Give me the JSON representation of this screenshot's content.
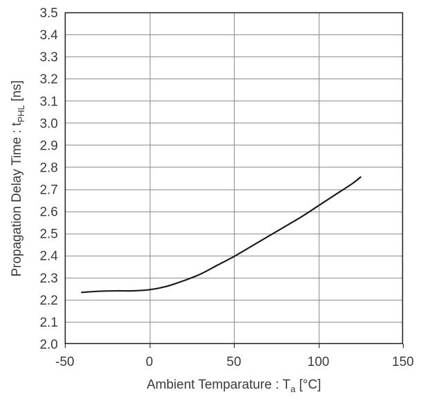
{
  "chart_data": {
    "type": "line",
    "title": "",
    "xlabel": {
      "main": "Ambient Temparature : T",
      "sub": "a",
      "unit": " [°C]"
    },
    "ylabel": {
      "main": "Propagation Delay Time  : t",
      "sub": "PHL",
      "unit": " [ns]"
    },
    "xlim": [
      -50,
      150
    ],
    "ylim": [
      2.0,
      3.5
    ],
    "xticks": [
      -50,
      0,
      50,
      100,
      150
    ],
    "xtick_labels": [
      "-50",
      "0",
      "50",
      "100",
      "150"
    ],
    "yticks": [
      2.0,
      2.1,
      2.2,
      2.3,
      2.4,
      2.5,
      2.6,
      2.7,
      2.8,
      2.9,
      3.0,
      3.1,
      3.2,
      3.3,
      3.4,
      3.5
    ],
    "ytick_labels": [
      "2.0",
      "2.1",
      "2.2",
      "2.3",
      "2.4",
      "2.5",
      "2.6",
      "2.7",
      "2.8",
      "2.9",
      "3.0",
      "3.1",
      "3.2",
      "3.3",
      "3.4",
      "3.5"
    ],
    "x_gridlines": [
      0,
      50,
      100
    ],
    "grid": true,
    "line_color": "#1a1a1a",
    "grid_color": "#8c8c8c",
    "series": [
      {
        "x": [
          -40,
          -30,
          -20,
          -10,
          0,
          10,
          20,
          30,
          40,
          50,
          60,
          70,
          80,
          90,
          100,
          110,
          120,
          125
        ],
        "values": [
          2.233,
          2.238,
          2.24,
          2.24,
          2.245,
          2.26,
          2.285,
          2.315,
          2.355,
          2.395,
          2.44,
          2.485,
          2.53,
          2.575,
          2.625,
          2.675,
          2.725,
          2.755
        ]
      }
    ]
  }
}
